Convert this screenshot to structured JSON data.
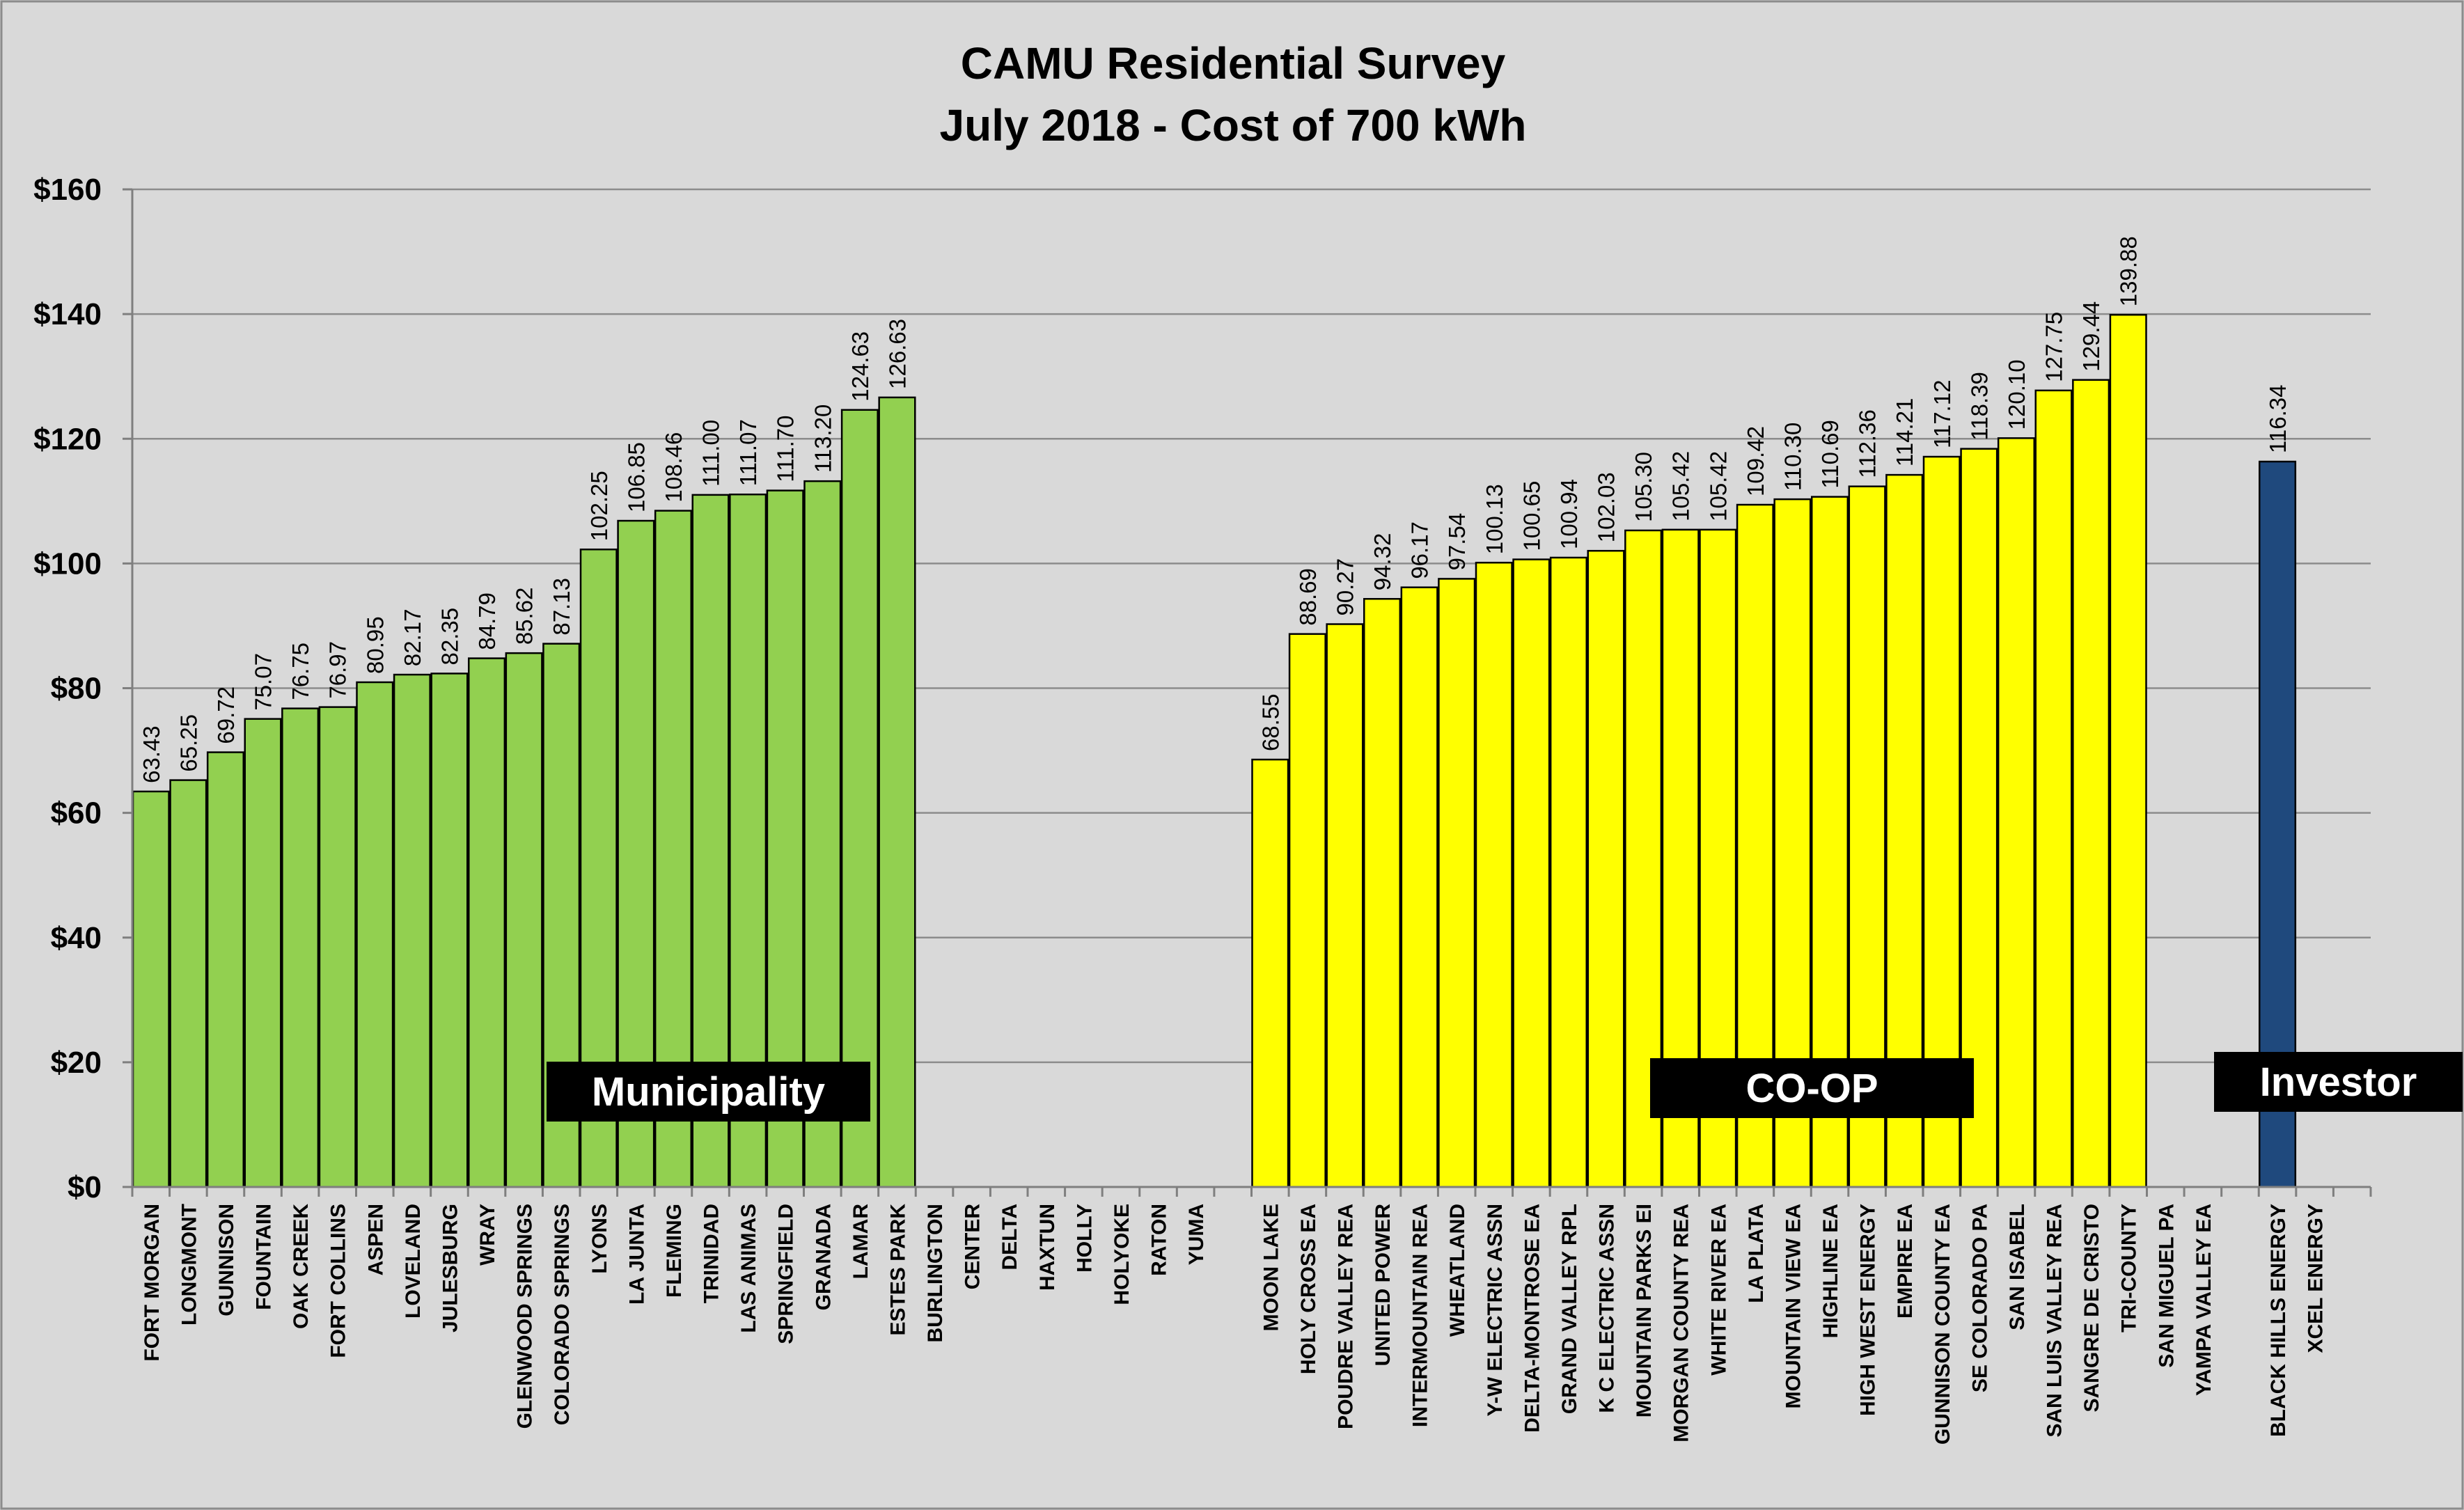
{
  "chart_data": {
    "type": "bar",
    "title": "CAMU Residential Survey",
    "subtitle": "July 2018 - Cost of 700 kWh",
    "xlabel": "",
    "ylabel": "",
    "ylim": [
      0,
      160
    ],
    "ytick_step": 20,
    "ytick_labels": [
      "$0",
      "$20",
      "$40",
      "$60",
      "$80",
      "$100",
      "$120",
      "$140",
      "$160"
    ],
    "grid": true,
    "legend": "none",
    "colors": {
      "Municipality": "#92d050",
      "CO-OP": "#ffff00",
      "Investor": "#1f497d"
    },
    "groups": [
      {
        "name": "Municipality",
        "label_box": "Municipality"
      },
      {
        "name": "CO-OP",
        "label_box": "CO-OP"
      },
      {
        "name": "Investor",
        "label_box": "Investor"
      }
    ],
    "categories": [
      "FORT MORGAN",
      "LONGMONT",
      "GUNNISON",
      "FOUNTAIN",
      "OAK CREEK",
      "FORT COLLINS",
      "ASPEN",
      "LOVELAND",
      "JULESBURG",
      "WRAY",
      "GLENWOOD SPRINGS",
      "COLORADO SPRINGS",
      "LYONS",
      "LA JUNTA",
      "FLEMING",
      "TRINIDAD",
      "LAS ANIMAS",
      "SPRINGFIELD",
      "GRANADA",
      "LAMAR",
      "ESTES PARK",
      "BURLINGTON",
      "CENTER",
      "DELTA",
      "HAXTUN",
      "HOLLY",
      "HOLYOKE",
      "RATON",
      "YUMA",
      "",
      "MOON LAKE",
      "HOLY CROSS EA",
      "POUDRE VALLEY REA",
      "UNITED POWER",
      "INTERMOUNTAIN REA",
      "WHEATLAND",
      "Y-W ELECTRIC ASSN",
      "DELTA-MONTROSE EA",
      "GRAND VALLEY RPL",
      "K C ELECTRIC ASSN",
      "MOUNTAIN PARKS EI",
      "MORGAN COUNTY REA",
      "WHITE RIVER EA",
      "LA PLATA",
      "MOUNTAIN VIEW EA",
      "HIGHLINE EA",
      "HIGH WEST ENERGY",
      "EMPIRE EA",
      "GUNNISON COUNTY EA",
      "SE COLORADO PA",
      "SAN ISABEL",
      "SAN LUIS VALLEY REA",
      "SANGRE DE CRISTO",
      "TRI-COUNTY",
      "SAN MIGUEL PA",
      "YAMPA VALLEY EA",
      "",
      "BLACK HILLS ENERGY",
      "XCEL ENERGY",
      ""
    ],
    "values": [
      63.43,
      65.25,
      69.72,
      75.07,
      76.75,
      76.97,
      80.95,
      82.17,
      82.35,
      84.79,
      85.62,
      87.13,
      102.25,
      106.85,
      108.46,
      111.0,
      111.07,
      111.7,
      113.2,
      124.63,
      126.63,
      null,
      null,
      null,
      null,
      null,
      null,
      null,
      null,
      null,
      68.55,
      88.69,
      90.27,
      94.32,
      96.17,
      97.54,
      100.13,
      100.65,
      100.94,
      102.03,
      105.3,
      105.42,
      105.42,
      109.42,
      110.3,
      110.69,
      112.36,
      114.21,
      117.12,
      118.39,
      120.1,
      127.75,
      129.44,
      139.88,
      null,
      null,
      null,
      116.34,
      null,
      null
    ],
    "value_labels": [
      "63.43",
      "65.25",
      "69.72",
      "75.07",
      "76.75",
      "76.97",
      "80.95",
      "82.17",
      "82.35",
      "84.79",
      "85.62",
      "87.13",
      "102.25",
      "106.85",
      "108.46",
      "111.00",
      "111.07",
      "111.70",
      "113.20",
      "124.63",
      "126.63",
      "",
      "",
      "",
      "",
      "",
      "",
      "",
      "",
      "",
      "68.55",
      "88.69",
      "90.27",
      "94.32",
      "96.17",
      "97.54",
      "100.13",
      "100.65",
      "100.94",
      "102.03",
      "105.30",
      "105.42",
      "105.42",
      "109.42",
      "110.30",
      "110.69",
      "112.36",
      "114.21",
      "117.12",
      "118.39",
      "120.10",
      "127.75",
      "129.44",
      "139.88",
      "",
      "",
      "",
      "116.34",
      "",
      ""
    ],
    "groups_per_category": [
      "Municipality",
      "Municipality",
      "Municipality",
      "Municipality",
      "Municipality",
      "Municipality",
      "Municipality",
      "Municipality",
      "Municipality",
      "Municipality",
      "Municipality",
      "Municipality",
      "Municipality",
      "Municipality",
      "Municipality",
      "Municipality",
      "Municipality",
      "Municipality",
      "Municipality",
      "Municipality",
      "Municipality",
      "Municipality",
      "Municipality",
      "Municipality",
      "Municipality",
      "Municipality",
      "Municipality",
      "Municipality",
      "Municipality",
      "",
      "CO-OP",
      "CO-OP",
      "CO-OP",
      "CO-OP",
      "CO-OP",
      "CO-OP",
      "CO-OP",
      "CO-OP",
      "CO-OP",
      "CO-OP",
      "CO-OP",
      "CO-OP",
      "CO-OP",
      "CO-OP",
      "CO-OP",
      "CO-OP",
      "CO-OP",
      "CO-OP",
      "CO-OP",
      "CO-OP",
      "CO-OP",
      "CO-OP",
      "CO-OP",
      "CO-OP",
      "CO-OP",
      "CO-OP",
      "",
      "Investor",
      "Investor",
      ""
    ]
  }
}
